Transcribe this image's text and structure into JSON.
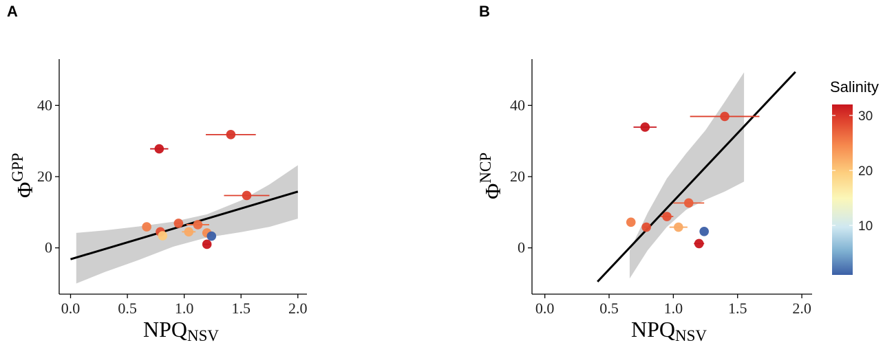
{
  "legend": {
    "title": "Salinity",
    "ticks": [
      10,
      20,
      30
    ],
    "range": [
      1,
      32
    ],
    "colors": [
      "#3b5fa6",
      "#7fb1d2",
      "#e4f1f6",
      "#fbf7b8",
      "#fdce7e",
      "#f6894e",
      "#e0452f",
      "#c8161e"
    ]
  },
  "chart_data": [
    {
      "panel": "A",
      "type": "scatter",
      "xlabel": "NPQ",
      "xlabel_sub": "NSV",
      "ylabel": "Φ",
      "ylabel_sup": "GPP",
      "xlim": [
        -0.1,
        2.08
      ],
      "ylim": [
        -13,
        53
      ],
      "xticks": [
        0.0,
        0.5,
        1.0,
        1.5,
        2.0
      ],
      "xtick_labels": [
        "0.0",
        "0.5",
        "1.0",
        "1.5",
        "2.0"
      ],
      "yticks": [
        0,
        20,
        40
      ],
      "ytick_labels": [
        "0",
        "20",
        "40"
      ],
      "fit_line": [
        [
          0.0,
          -3.2
        ],
        [
          2.0,
          15.8
        ]
      ],
      "confidence_band": {
        "x": [
          0.05,
          0.3,
          0.6,
          0.9,
          1.2,
          1.5,
          1.75,
          2.0
        ],
        "upper": [
          4.2,
          4.9,
          6.0,
          7.3,
          9.4,
          13.3,
          17.8,
          23.2
        ],
        "lower": [
          -10.0,
          -6.8,
          -3.4,
          0.3,
          2.9,
          4.4,
          5.9,
          8.2
        ]
      },
      "points": [
        {
          "x": 0.78,
          "y": 27.8,
          "xerr": 0.08,
          "salinity": 32
        },
        {
          "x": 1.41,
          "y": 31.8,
          "xerr": 0.22,
          "salinity": 29
        },
        {
          "x": 1.55,
          "y": 14.7,
          "xerr": 0.2,
          "salinity": 28
        },
        {
          "x": 0.95,
          "y": 6.9,
          "xerr": 0.04,
          "salinity": 26
        },
        {
          "x": 0.67,
          "y": 5.9,
          "xerr": 0.0,
          "salinity": 24
        },
        {
          "x": 0.79,
          "y": 4.5,
          "xerr": 0.02,
          "salinity": 27
        },
        {
          "x": 0.81,
          "y": 3.4,
          "xerr": 0.0,
          "salinity": 19
        },
        {
          "x": 1.04,
          "y": 4.5,
          "xerr": 0.06,
          "salinity": 21
        },
        {
          "x": 1.12,
          "y": 6.5,
          "xerr": 0.1,
          "salinity": 25
        },
        {
          "x": 1.2,
          "y": 4.2,
          "xerr": 0.04,
          "salinity": 23
        },
        {
          "x": 1.24,
          "y": 3.3,
          "xerr": 0.0,
          "salinity": 1
        },
        {
          "x": 1.2,
          "y": 1.0,
          "xerr": 0.03,
          "salinity": 32
        }
      ]
    },
    {
      "panel": "B",
      "type": "scatter",
      "xlabel": "NPQ",
      "xlabel_sub": "NSV",
      "ylabel": "Φ",
      "ylabel_sup": "NCP",
      "xlim": [
        -0.1,
        2.08
      ],
      "ylim": [
        -13,
        53
      ],
      "xticks": [
        0.0,
        0.5,
        1.0,
        1.5,
        2.0
      ],
      "xtick_labels": [
        "0.0",
        "0.5",
        "1.0",
        "1.5",
        "2.0"
      ],
      "yticks": [
        0,
        20,
        40
      ],
      "ytick_labels": [
        "0",
        "20",
        "40"
      ],
      "fit_line": [
        [
          0.41,
          -9.5
        ],
        [
          1.95,
          49.4
        ]
      ],
      "confidence_band": {
        "x": [
          0.66,
          0.8,
          0.95,
          1.1,
          1.25,
          1.4,
          1.55
        ],
        "upper": [
          -0.8,
          9.8,
          19.5,
          26.5,
          33.0,
          41.0,
          49.3
        ],
        "lower": [
          -8.6,
          -0.7,
          5.9,
          10.7,
          13.5,
          15.8,
          18.6
        ]
      },
      "points": [
        {
          "x": 0.78,
          "y": 33.9,
          "xerr": 0.09,
          "salinity": 32
        },
        {
          "x": 1.4,
          "y": 36.9,
          "xerr": 0.27,
          "salinity": 28
        },
        {
          "x": 1.12,
          "y": 12.6,
          "xerr": 0.12,
          "salinity": 26
        },
        {
          "x": 0.95,
          "y": 8.8,
          "xerr": 0.05,
          "salinity": 27
        },
        {
          "x": 0.67,
          "y": 7.2,
          "xerr": 0.0,
          "salinity": 24
        },
        {
          "x": 0.79,
          "y": 5.8,
          "xerr": 0.02,
          "salinity": 27
        },
        {
          "x": 1.04,
          "y": 5.8,
          "xerr": 0.07,
          "salinity": 21
        },
        {
          "x": 1.24,
          "y": 4.6,
          "xerr": 0.0,
          "salinity": 1
        },
        {
          "x": 1.2,
          "y": 1.2,
          "xerr": 0.04,
          "salinity": 32
        }
      ]
    }
  ]
}
